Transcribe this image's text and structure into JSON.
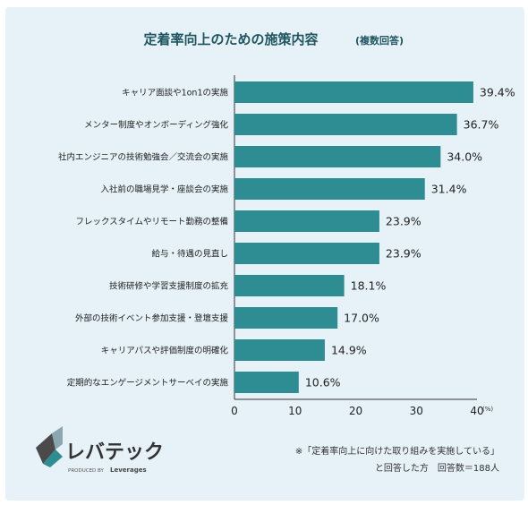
{
  "chart_data": {
    "type": "bar",
    "orientation": "horizontal",
    "title": "定着率向上のための施策内容",
    "subtitle": "(複数回答)",
    "categories": [
      "キャリア面談や1on1の実施",
      "メンター制度やオンボーディング強化",
      "社内エンジニアの技術勉強会／交流会の実施",
      "入社前の職場見学・座談会の実施",
      "フレックスタイムやリモート勤務の整備",
      "給与・待遇の見直し",
      "技術研修や学習支援制度の拡充",
      "外部の技術イベント参加支援・登壇支援",
      "キャリアパスや評価制度の明確化",
      "定期的なエンゲージメントサーベイの実施"
    ],
    "values": [
      39.4,
      36.7,
      34.0,
      31.4,
      23.9,
      23.9,
      18.1,
      17.0,
      14.9,
      10.6
    ],
    "value_labels": [
      "39.4%",
      "36.7%",
      "34.0%",
      "31.4%",
      "23.9%",
      "23.9%",
      "18.1%",
      "17.0%",
      "14.9%",
      "10.6%"
    ],
    "xlim": [
      0,
      40
    ],
    "xticks": [
      0,
      10,
      20,
      30,
      40
    ],
    "xunit": "(%)",
    "grid": false,
    "bar_color": "#2e8c93"
  },
  "logo": {
    "name": "レバテック",
    "produced_by": "PRODUCED BY",
    "brand": "Leverages"
  },
  "footnote": {
    "line1": "※「定着率向上に向けた取り組みを実施している」",
    "line2": "と回答した方　回答数＝188人"
  },
  "colors": {
    "background": "#e6f2f7",
    "bar": "#2e8c93",
    "title": "#1f5560",
    "text": "#222222"
  }
}
